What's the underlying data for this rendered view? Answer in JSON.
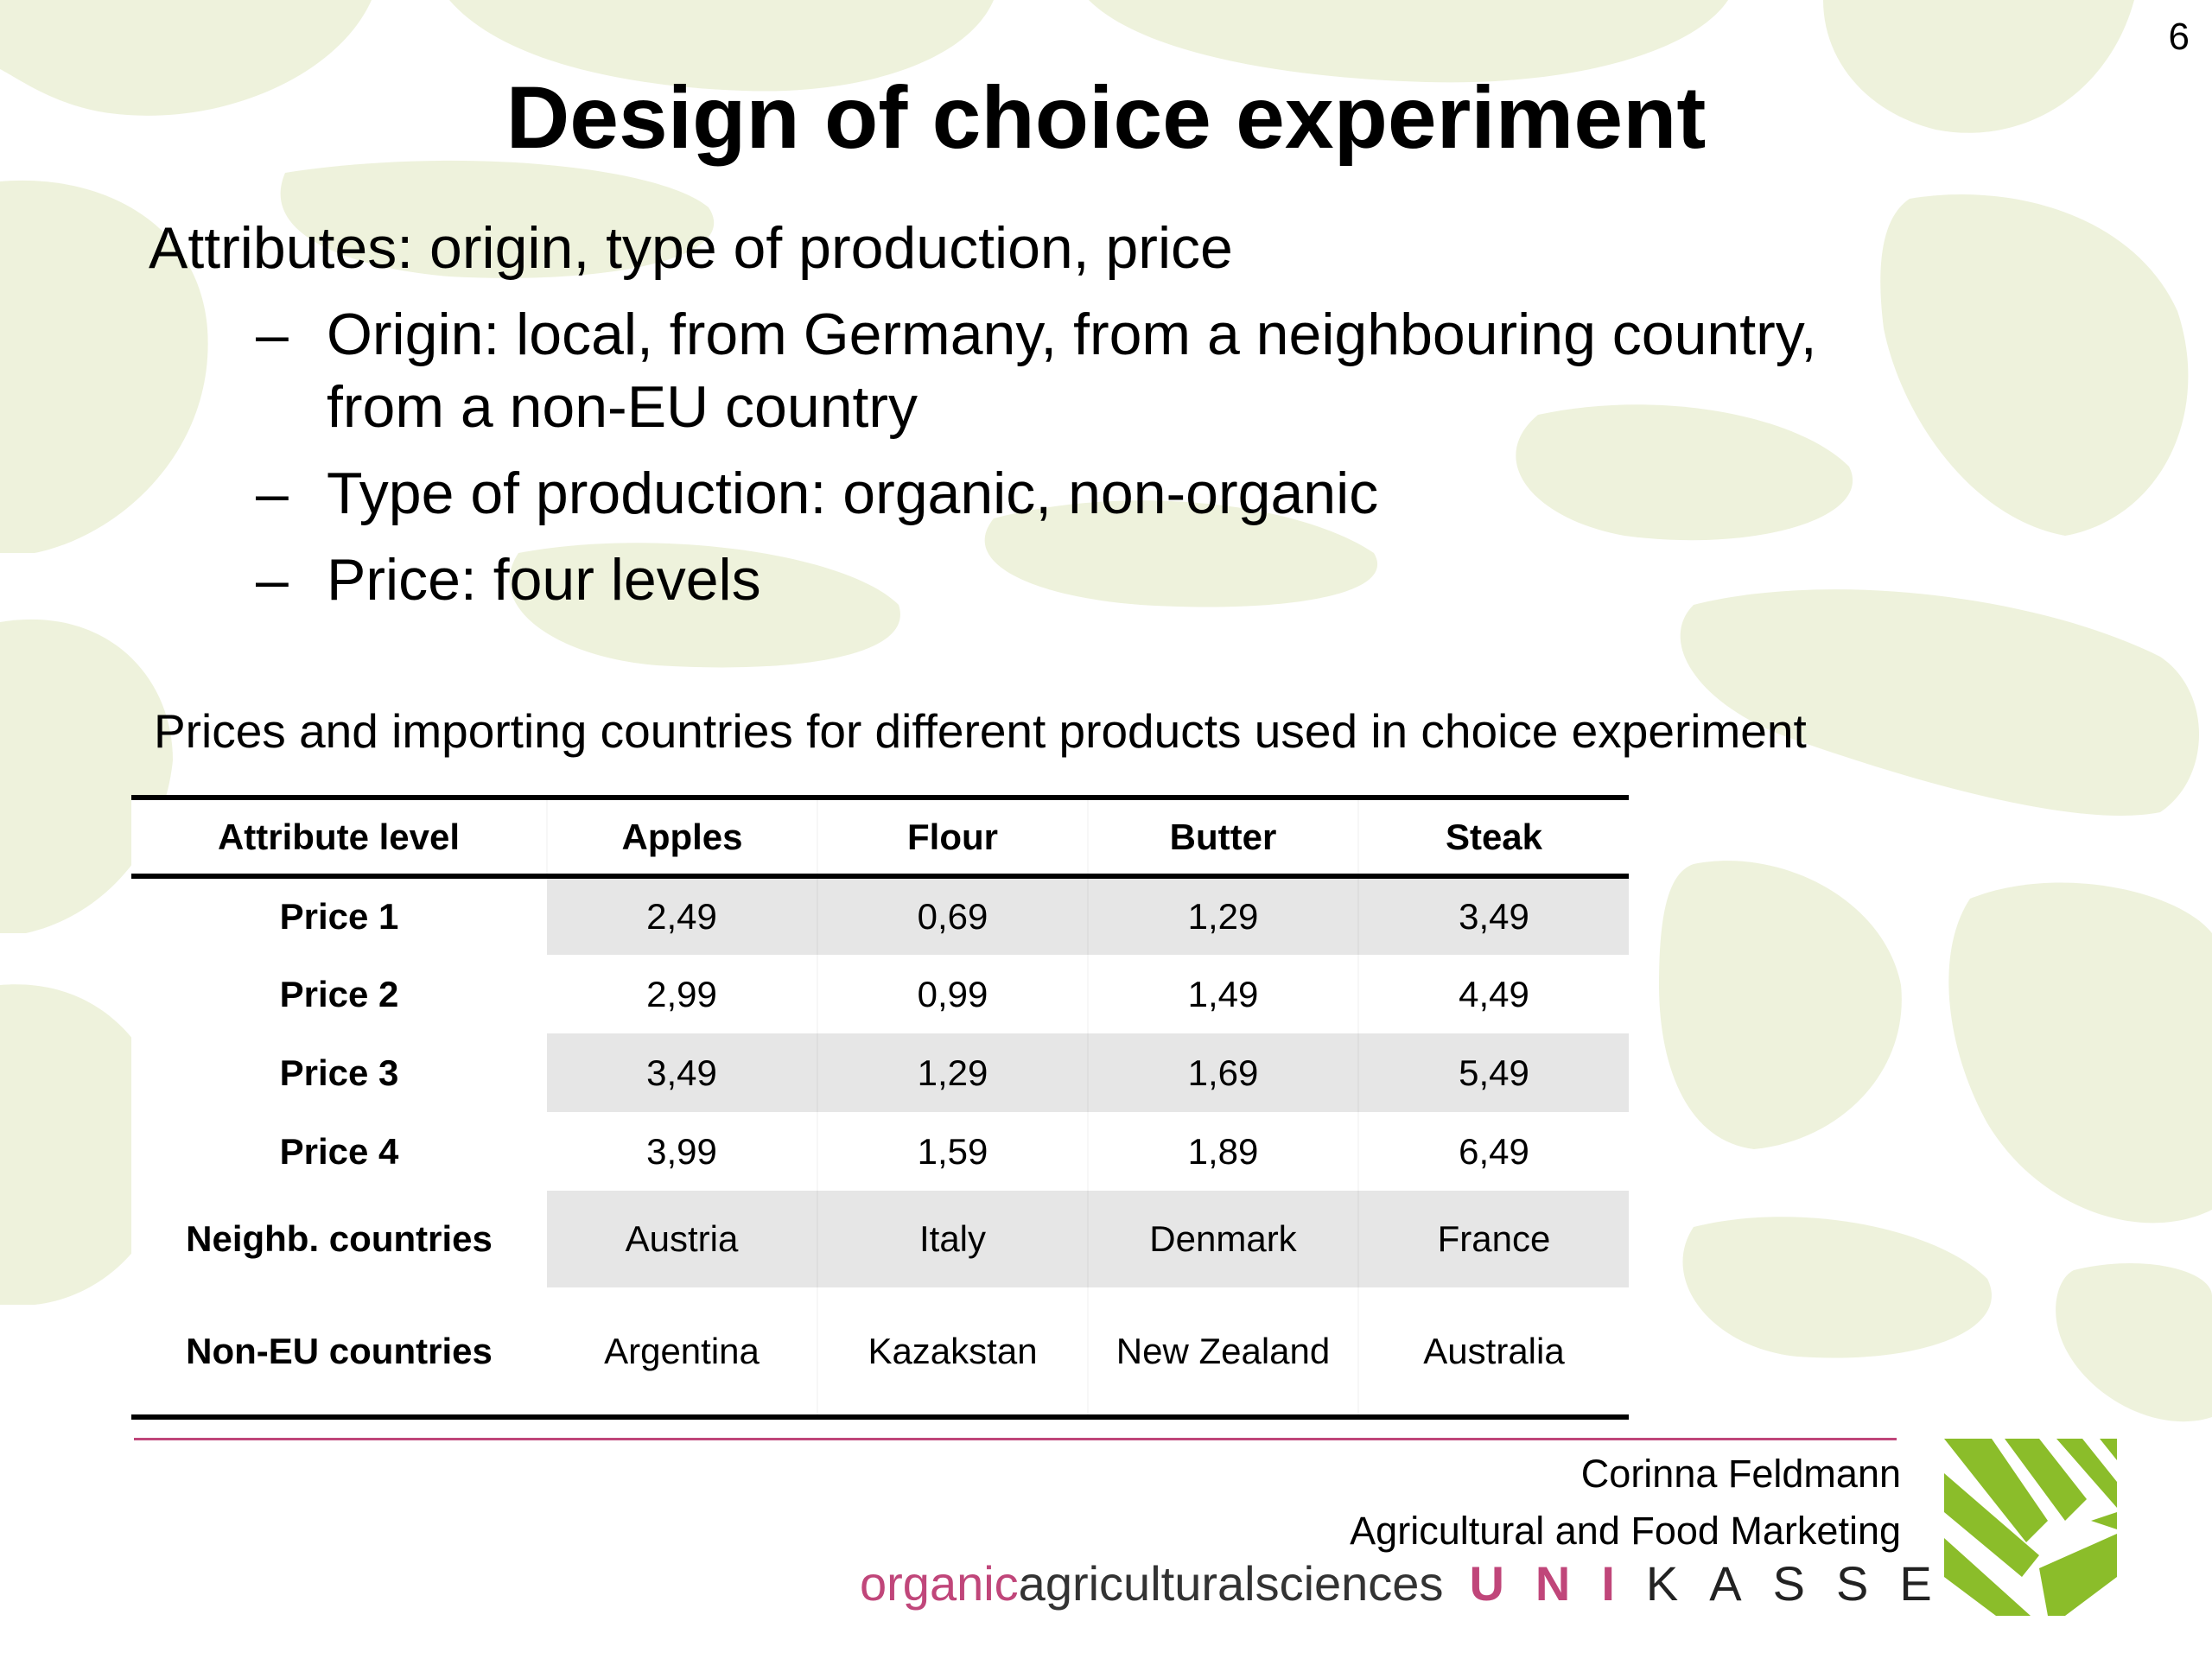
{
  "slide_number": "6",
  "title": "Design of choice experiment",
  "attributes_line": "Attributes: origin, type of production, price",
  "sub_bullets": [
    "Origin: local, from Germany, from a neighbouring country, from a non-EU country",
    "Type of production: organic, non-organic",
    "Price: four levels"
  ],
  "dash": "–",
  "table": {
    "caption": "Prices and importing countries for different products used in choice experiment",
    "headers": [
      "Attribute level",
      "Apples",
      "Flour",
      "Butter",
      "Steak"
    ],
    "rows": [
      [
        "Price 1",
        "2,49",
        "0,69",
        "1,29",
        "3,49"
      ],
      [
        "Price 2",
        "2,99",
        "0,99",
        "1,49",
        "4,49"
      ],
      [
        "Price 3",
        "3,49",
        "1,29",
        "1,69",
        "5,49"
      ],
      [
        "Price 4",
        "3,99",
        "1,59",
        "1,89",
        "6,49"
      ],
      [
        "Neighb. countries",
        "Austria",
        "Italy",
        "Denmark",
        "France"
      ],
      [
        "Non-EU countries",
        "Argentina",
        "Kazakstan",
        "New Zealand",
        "Australia"
      ]
    ]
  },
  "footer": {
    "author": "Corinna Feldmann",
    "department": "Agricultural and Food Marketing",
    "brand_organic": "organic",
    "brand_rest": "agriculturalsciences",
    "brand_uni": "UNI",
    "brand_kassel": "KASSEL"
  },
  "colors": {
    "accent_magenta": "#c0467a",
    "logo_green": "#8bbd2a",
    "background_pattern": "#eef2dc",
    "table_shade": "#e6e6e6"
  }
}
